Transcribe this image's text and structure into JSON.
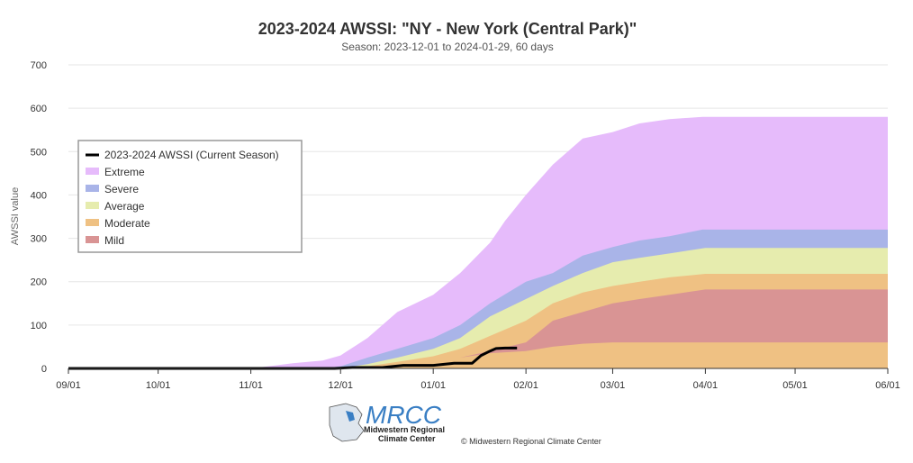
{
  "chart_data": {
    "type": "area",
    "title": "2023-2024 AWSSI: \"NY - New York (Central Park)\"",
    "subtitle": "Season: 2023-12-01 to 2024-01-29, 60 days",
    "ylabel": "AWSSI value",
    "xlabel": "",
    "ylim": [
      0,
      700
    ],
    "yticks": [
      0,
      100,
      200,
      300,
      400,
      500,
      600,
      700
    ],
    "xlim": [
      "2023-09-01",
      "2024-06-01"
    ],
    "xticks": [
      "09/01",
      "10/01",
      "11/01",
      "12/01",
      "01/01",
      "02/01",
      "03/01",
      "04/01",
      "05/01",
      "06/01"
    ],
    "grid": "horizontal",
    "legend_position": "left",
    "colors": {
      "extreme": "#e6bbfb",
      "severe": "#a9b4e8",
      "average": "#e6ecae",
      "moderate": "#efc183",
      "mild": "#d99494",
      "current": "#000000"
    },
    "series": [
      {
        "name": "2023-2024 AWSSI (Current Season)",
        "kind": "line",
        "x": [
          "2023-09-01",
          "2023-11-29",
          "2023-12-05",
          "2023-12-15",
          "2023-12-22",
          "2024-01-01",
          "2024-01-05",
          "2024-01-08",
          "2024-01-14",
          "2024-01-17",
          "2024-01-20",
          "2024-01-22",
          "2024-01-25",
          "2024-01-29"
        ],
        "y": [
          0,
          0,
          2,
          2,
          7,
          7,
          10,
          12,
          12,
          30,
          40,
          46,
          47,
          47
        ]
      },
      {
        "name": "Extreme",
        "kind": "band",
        "x": [
          "2023-11-01",
          "2023-11-07",
          "2023-11-15",
          "2023-11-25",
          "2023-12-01",
          "2023-12-10",
          "2023-12-20",
          "2024-01-01",
          "2024-01-10",
          "2024-01-20",
          "2024-01-25",
          "2024-02-01",
          "2024-02-10",
          "2024-02-20",
          "2024-03-01",
          "2024-03-10",
          "2024-03-20",
          "2024-03-31",
          "2024-06-01"
        ],
        "y": [
          0,
          5,
          12,
          18,
          30,
          70,
          130,
          170,
          220,
          290,
          340,
          400,
          470,
          530,
          545,
          565,
          575,
          580,
          580
        ]
      },
      {
        "name": "Severe",
        "kind": "band",
        "x": [
          "2023-11-25",
          "2023-12-01",
          "2023-12-10",
          "2023-12-20",
          "2024-01-01",
          "2024-01-10",
          "2024-01-20",
          "2024-02-01",
          "2024-02-10",
          "2024-02-20",
          "2024-03-01",
          "2024-03-10",
          "2024-03-20",
          "2024-03-31",
          "2024-06-01"
        ],
        "y": [
          0,
          5,
          25,
          45,
          70,
          100,
          150,
          200,
          220,
          260,
          280,
          295,
          305,
          320,
          320
        ]
      },
      {
        "name": "Average",
        "kind": "band",
        "x": [
          "2023-12-01",
          "2023-12-10",
          "2023-12-20",
          "2024-01-01",
          "2024-01-10",
          "2024-01-20",
          "2024-02-01",
          "2024-02-10",
          "2024-02-20",
          "2024-03-01",
          "2024-03-10",
          "2024-03-20",
          "2024-04-01",
          "2024-06-01"
        ],
        "y": [
          0,
          10,
          25,
          45,
          70,
          120,
          160,
          190,
          220,
          245,
          255,
          265,
          278,
          278
        ]
      },
      {
        "name": "Moderate",
        "kind": "band",
        "x": [
          "2023-12-01",
          "2023-12-10",
          "2023-12-20",
          "2024-01-01",
          "2024-01-10",
          "2024-01-20",
          "2024-02-01",
          "2024-02-10",
          "2024-02-20",
          "2024-03-01",
          "2024-03-10",
          "2024-03-20",
          "2024-04-01",
          "2024-06-01"
        ],
        "y": [
          0,
          5,
          15,
          28,
          45,
          75,
          110,
          150,
          175,
          190,
          200,
          210,
          218,
          218
        ]
      },
      {
        "name": "Mild",
        "kind": "band",
        "x": [
          "2023-12-01",
          "2023-12-10",
          "2023-12-20",
          "2024-01-01",
          "2024-01-10",
          "2024-01-20",
          "2024-02-01",
          "2024-02-10",
          "2024-02-20",
          "2024-03-01",
          "2024-03-10",
          "2024-03-20",
          "2024-04-01",
          "2024-06-01"
        ],
        "y": [
          0,
          3,
          8,
          15,
          25,
          40,
          60,
          110,
          130,
          150,
          160,
          170,
          182,
          182
        ],
        "baseline": [
          0,
          3,
          8,
          15,
          25,
          35,
          40,
          50,
          57,
          60,
          60,
          60,
          60,
          60
        ]
      }
    ]
  },
  "logo": {
    "name": "MRCC",
    "line1": "Midwestern Regional",
    "line2": "Climate Center"
  },
  "credit": "© Midwestern Regional Climate Center"
}
